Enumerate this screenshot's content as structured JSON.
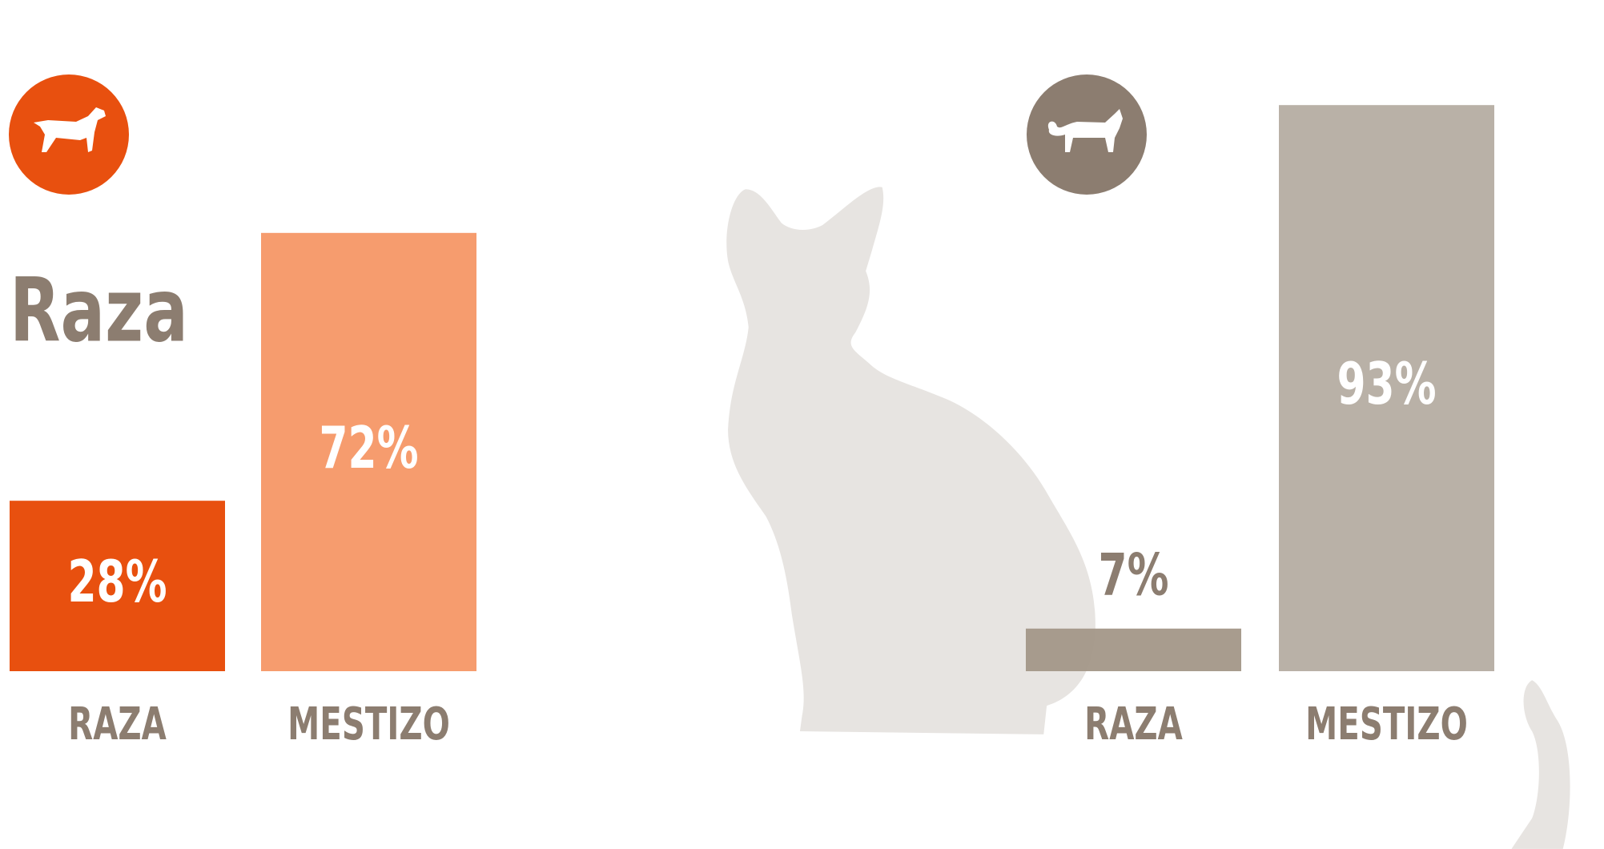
{
  "heading": "Raza",
  "chart_data": [
    {
      "type": "bar",
      "categories": [
        "RAZA",
        "MESTIZO"
      ],
      "values": [
        28,
        72
      ],
      "value_labels": [
        "28%",
        "72%"
      ],
      "colors": [
        "#e8500f",
        "#f69c6e"
      ]
    },
    {
      "type": "bar",
      "categories": [
        "RAZA",
        "MESTIZO"
      ],
      "values": [
        7,
        93
      ],
      "value_labels": [
        "7%",
        "93%"
      ],
      "colors": [
        "#a39788",
        "#b9b1a7"
      ]
    }
  ]
}
